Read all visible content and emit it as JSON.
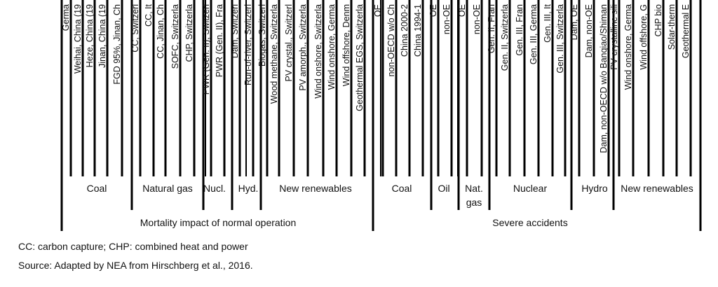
{
  "chart_data": {
    "type": "bar",
    "sections": [
      {
        "label": "Mortality impact of normal operation",
        "groups": [
          {
            "label": "Coal",
            "categories": [
              "Germa",
              "Weihai, China (19",
              "Heze, China (19",
              "Jinan, China (19",
              "FGD 95%, Jinan, Ch"
            ]
          },
          {
            "label": "Natural gas",
            "categories": [
              "CC, Switzerl",
              "CC, It",
              "CC, Jinan, Ch",
              "SOFC, Switzerla",
              "CHP, Switzerla"
            ]
          },
          {
            "label": "Nucl.",
            "categories": [
              "PWR (Gen. II), Switzerl",
              "PWR (Gen. II), Fra"
            ]
          },
          {
            "label": "Hyd.",
            "categories": [
              "Dam, Switzerl",
              "Run-of-river, Switzerl"
            ]
          },
          {
            "label": "New renewables",
            "categories": [
              "Biogas, Switzerl",
              "Wood methane, Switzerla",
              "PV crystal., Switzerl",
              "PV amorph., Switzerla",
              "Wind onshore, Switzerla",
              "Wind onshore, Germa",
              "Wind offshore, Denm",
              "Geothermal EGS, Switzerla"
            ]
          }
        ]
      },
      {
        "label": "Severe accidents",
        "groups": [
          {
            "label": "Coal",
            "categories": [
              "OE",
              "non-OECD w/o Ch",
              "China 2000-2",
              "China 1994-1"
            ]
          },
          {
            "label": "Oil",
            "categories": [
              "OE",
              "non-OE"
            ]
          },
          {
            "label": "Nat. gas",
            "categories": [
              "OE",
              "non-OE"
            ]
          },
          {
            "label": "Nuclear",
            "categories": [
              "Gen. II, Fran",
              "Gen. II, Switzerla",
              "Gen. III, Fran",
              "Gen. III, Germa",
              "Gen. III, It",
              "Gen. III, Switzerla"
            ]
          },
          {
            "label": "Hydro",
            "categories": [
              "Dam, OE",
              "Dam, non-OE",
              "Dam, non-OECD w/o Banqiao/Shiman"
            ]
          },
          {
            "label": "New renewables",
            "categories": [
              "PV crystalline sili",
              "Wind onshore, Germa",
              "Wind offshore, G",
              "CHP bio",
              "Solar-therm",
              "Geothermal E"
            ]
          }
        ]
      }
    ]
  },
  "footnotes": {
    "abbrev": "CC: carbon capture; CHP: combined heat and power",
    "source": "Source: Adapted by NEA from Hirschberg et al., 2016."
  }
}
